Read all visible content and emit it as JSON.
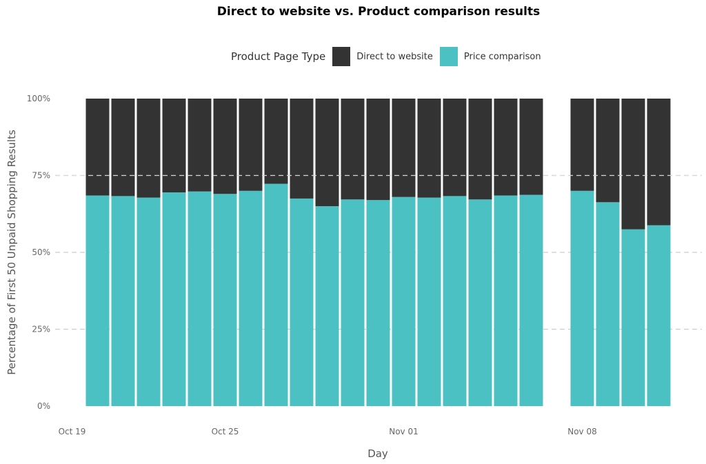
{
  "chart_data": {
    "type": "bar",
    "stacked": true,
    "title": "Direct to website vs. Product comparison results",
    "xlabel": "Day",
    "ylabel": "Percentage of First 50 Unpaid Shopping Results",
    "ylim": [
      0,
      1
    ],
    "y_ticks": [
      "0%",
      "25%",
      "50%",
      "75%",
      "100%"
    ],
    "y_tick_values": [
      0,
      0.25,
      0.5,
      0.75,
      1
    ],
    "x_ticks": [
      "Oct 19",
      "Oct 25",
      "Nov 01",
      "Nov 08"
    ],
    "x_tick_dates": [
      "2020-10-19",
      "2020-10-25",
      "2020-11-01",
      "2020-11-08"
    ],
    "grid": "horizontal dashed",
    "legend_title": "Product Page Type",
    "legend_position": "top",
    "categories": [
      "2020-10-20",
      "2020-10-21",
      "2020-10-22",
      "2020-10-23",
      "2020-10-24",
      "2020-10-25",
      "2020-10-26",
      "2020-10-27",
      "2020-10-28",
      "2020-10-29",
      "2020-10-30",
      "2020-10-31",
      "2020-11-01",
      "2020-11-02",
      "2020-11-03",
      "2020-11-04",
      "2020-11-05",
      "2020-11-06",
      "2020-11-08",
      "2020-11-09",
      "2020-11-10",
      "2020-11-11"
    ],
    "series": [
      {
        "name": "Direct to website",
        "color": "#333333",
        "values": [
          0.315,
          0.317,
          0.322,
          0.305,
          0.302,
          0.31,
          0.3,
          0.277,
          0.325,
          0.35,
          0.328,
          0.33,
          0.32,
          0.322,
          0.317,
          0.328,
          0.315,
          0.313,
          0.3,
          0.337,
          0.425,
          0.412
        ]
      },
      {
        "name": "Price comparison",
        "color": "#4BC1C4",
        "values": [
          0.685,
          0.683,
          0.678,
          0.695,
          0.698,
          0.69,
          0.7,
          0.723,
          0.675,
          0.65,
          0.672,
          0.67,
          0.68,
          0.678,
          0.683,
          0.672,
          0.685,
          0.687,
          0.7,
          0.663,
          0.575,
          0.588
        ]
      }
    ]
  }
}
